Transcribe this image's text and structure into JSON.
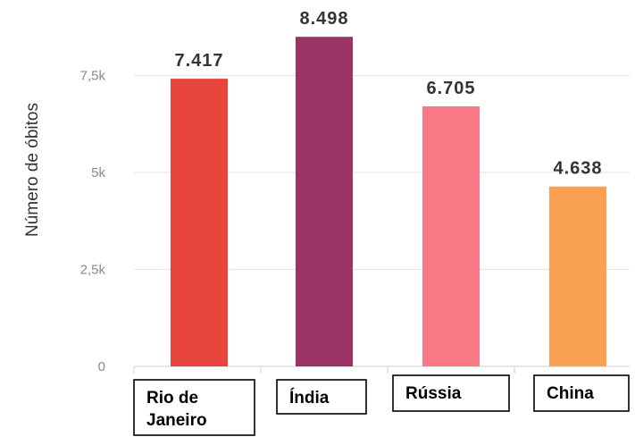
{
  "chart_data": {
    "type": "bar",
    "ylabel": "Número de óbitos",
    "ylim": [
      0,
      9000
    ],
    "yticks": [
      {
        "value": 0,
        "label": "0"
      },
      {
        "value": 2500,
        "label": "2,5k"
      },
      {
        "value": 5000,
        "label": "5k"
      },
      {
        "value": 7500,
        "label": "7,5k"
      }
    ],
    "grid": true,
    "categories": [
      {
        "lines": [
          "Rio de",
          "Janeiro"
        ]
      },
      {
        "lines": [
          "Índia"
        ]
      },
      {
        "lines": [
          "Rússia"
        ]
      },
      {
        "lines": [
          "China"
        ]
      }
    ],
    "values": [
      7417,
      8498,
      6705,
      4638
    ],
    "value_labels": [
      "7.417",
      "8.498",
      "6.705",
      "4.638"
    ],
    "colors": [
      "#e8463c",
      "#9b3364",
      "#f97a86",
      "#f9a052"
    ]
  }
}
